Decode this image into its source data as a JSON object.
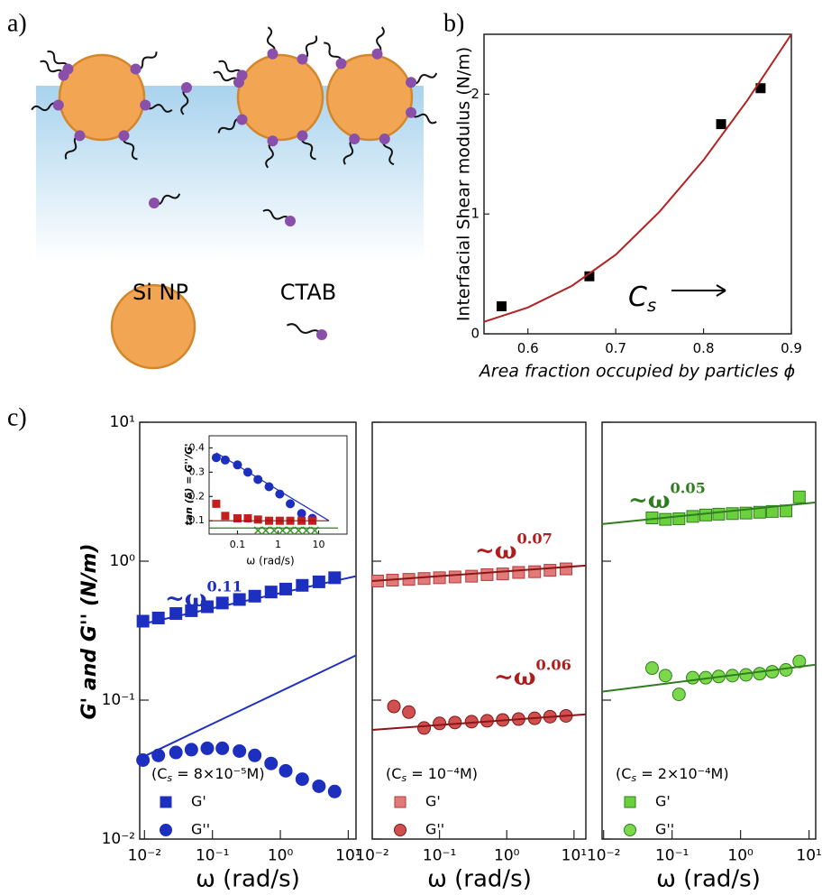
{
  "panel_labels": [
    "a)",
    "b)",
    "c)"
  ],
  "diagram": {
    "labels": [
      "Si NP",
      "CTAB"
    ]
  },
  "chart_data": [
    {
      "type": "scatter",
      "ylabel": "Interfacial Shear modulus (N/m)",
      "xlabel": "Area fraction occupied by particles ϕ",
      "xlim": [
        0.55,
        0.9
      ],
      "xticks": [
        0.6,
        0.7,
        0.8,
        0.9
      ],
      "xlog": false,
      "ylim": [
        0,
        2.5
      ],
      "yticks": [
        0,
        1,
        2
      ],
      "ylog": false,
      "series": [
        {
          "marker": "square",
          "color": "#000000",
          "x": [
            0.57,
            0.67,
            0.82,
            0.865
          ],
          "values": [
            0.23,
            0.48,
            1.75,
            2.05
          ]
        },
        {
          "marker": "line",
          "color": "#b22222",
          "x": [
            0.55,
            0.6,
            0.65,
            0.7,
            0.75,
            0.8,
            0.85,
            0.9
          ],
          "values": [
            0.1,
            0.22,
            0.4,
            0.66,
            1.02,
            1.45,
            1.95,
            2.5
          ]
        }
      ],
      "annotations": [
        {
          "text": "C",
          "subscript": "s"
        }
      ]
    },
    {
      "type": "scatter",
      "ylabel": "G' and G'' (N/m)",
      "xlabel": "ω (rad/s)",
      "xlim": [
        0.0085,
        13
      ],
      "xlog": true,
      "xticks": [
        {
          "value": 0.01,
          "label": "10⁻²"
        },
        {
          "value": 0.1,
          "label": "10⁻¹"
        },
        {
          "value": 1,
          "label": "10⁰"
        },
        {
          "value": 10,
          "label": "10¹"
        }
      ],
      "ylim": [
        0.01,
        10
      ],
      "ylog": true,
      "yticks": [
        {
          "value": 0.01,
          "label": "10⁻²"
        },
        {
          "value": 0.1,
          "label": "10⁻¹"
        },
        {
          "value": 1,
          "label": "10⁰"
        },
        {
          "value": 10,
          "label": "10¹"
        }
      ],
      "condition": {
        "prefix": "(C",
        "subscript": "s",
        "suffix": " = 8×10⁻⁵M)"
      },
      "series": [
        {
          "name": "G'",
          "marker": "square",
          "color": "#1c2fbf",
          "edge": "#1c2fbf",
          "x": [
            0.0095,
            0.016,
            0.029,
            0.049,
            0.084,
            0.14,
            0.25,
            0.42,
            0.73,
            1.2,
            2.1,
            3.7,
            6.3
          ],
          "values": [
            0.37,
            0.39,
            0.42,
            0.44,
            0.47,
            0.5,
            0.53,
            0.56,
            0.6,
            0.63,
            0.67,
            0.71,
            0.76
          ]
        },
        {
          "name": "G''",
          "marker": "circle",
          "color": "#1c2fbf",
          "edge": "#1c2fbf",
          "x": [
            0.0095,
            0.016,
            0.029,
            0.049,
            0.084,
            0.14,
            0.25,
            0.42,
            0.73,
            1.2,
            2.1,
            3.7,
            6.3
          ],
          "values": [
            0.037,
            0.04,
            0.042,
            0.044,
            0.045,
            0.045,
            0.043,
            0.04,
            0.035,
            0.031,
            0.027,
            0.024,
            0.022
          ]
        },
        {
          "marker": "line",
          "color": "#1c2fbf",
          "x": [
            0.0085,
            13
          ],
          "values": [
            0.35,
            0.78
          ]
        },
        {
          "marker": "line",
          "color": "#1c2fbf",
          "x": [
            0.0085,
            13
          ],
          "values": [
            0.038,
            0.21
          ]
        }
      ],
      "annotations": [
        {
          "text": "~ω",
          "exponent": "0.11",
          "color": "#1c2fbf"
        }
      ]
    },
    {
      "type": "scatter",
      "xlabel": "ω (rad/s)",
      "xlim": [
        0.01,
        15
      ],
      "xlog": true,
      "xticks": [
        {
          "value": 0.01,
          "label": "10⁻²"
        },
        {
          "value": 0.1,
          "label": "10⁻¹"
        },
        {
          "value": 1,
          "label": "10⁰"
        },
        {
          "value": 10,
          "label": "10¹"
        }
      ],
      "ylim": [
        0.01,
        10
      ],
      "ylog": true,
      "yticks": [
        0.01,
        0.1,
        1,
        10
      ],
      "condition": {
        "prefix": "(C",
        "subscript": "s",
        "suffix": " = 10⁻⁴M)"
      },
      "series": [
        {
          "name": "G'",
          "marker": "square",
          "color": "#e27a7a",
          "edge": "#b23a3a",
          "x": [
            0.012,
            0.02,
            0.035,
            0.059,
            0.1,
            0.17,
            0.3,
            0.51,
            0.87,
            1.5,
            2.6,
            4.4,
            7.6
          ],
          "values": [
            0.72,
            0.73,
            0.74,
            0.75,
            0.76,
            0.77,
            0.78,
            0.8,
            0.81,
            0.83,
            0.84,
            0.86,
            0.88
          ]
        },
        {
          "name": "G''",
          "marker": "circle",
          "color": "#d24f4f",
          "edge": "#7a1c1c",
          "x": [
            0.021,
            0.035,
            0.059,
            0.1,
            0.17,
            0.3,
            0.51,
            0.87,
            1.5,
            2.6,
            4.4,
            7.6
          ],
          "values": [
            0.09,
            0.082,
            0.063,
            0.068,
            0.069,
            0.07,
            0.071,
            0.072,
            0.073,
            0.074,
            0.076,
            0.077
          ]
        },
        {
          "marker": "line",
          "color": "#8b1616",
          "x": [
            0.01,
            15
          ],
          "values": [
            0.72,
            0.93
          ]
        },
        {
          "marker": "line",
          "color": "#8b1616",
          "x": [
            0.01,
            15
          ],
          "values": [
            0.061,
            0.079
          ]
        }
      ],
      "annotations": [
        {
          "text": "~ω",
          "exponent": "0.07",
          "color": "#b01c1c"
        },
        {
          "text": "~ω",
          "exponent": "0.06",
          "color": "#b01c1c"
        }
      ]
    },
    {
      "type": "scatter",
      "xlabel": "ω (rad/s)",
      "xlim": [
        0.0095,
        12.5
      ],
      "xlog": true,
      "xticks": [
        {
          "value": 0.01,
          "label": "10⁻²"
        },
        {
          "value": 0.1,
          "label": "10⁻¹"
        },
        {
          "value": 1,
          "label": "10⁰"
        },
        {
          "value": 10,
          "label": "10¹"
        }
      ],
      "ylim": [
        0.01,
        10
      ],
      "ylog": true,
      "yticks": [
        0.01,
        0.1,
        1,
        10
      ],
      "condition": {
        "prefix": "(C",
        "subscript": "s",
        "suffix": " = 2×10⁻⁴M)"
      },
      "series": [
        {
          "name": "G'",
          "marker": "square",
          "color": "#6ad13d",
          "edge": "#2f7d1f",
          "x": [
            0.051,
            0.08,
            0.126,
            0.2,
            0.31,
            0.48,
            0.76,
            1.2,
            1.9,
            2.9,
            4.6,
            7.2
          ],
          "values": [
            2.05,
            2.0,
            2.02,
            2.1,
            2.15,
            2.18,
            2.2,
            2.22,
            2.25,
            2.28,
            2.3,
            2.9
          ]
        },
        {
          "name": "G''",
          "marker": "circle",
          "color": "#7ad84a",
          "edge": "#2f7d1f",
          "x": [
            0.051,
            0.08,
            0.126,
            0.2,
            0.31,
            0.48,
            0.76,
            1.2,
            1.9,
            2.9,
            4.6,
            7.2
          ],
          "values": [
            0.17,
            0.15,
            0.11,
            0.145,
            0.145,
            0.148,
            0.15,
            0.152,
            0.155,
            0.16,
            0.165,
            0.19
          ]
        },
        {
          "marker": "line",
          "color": "#2f7d1f",
          "x": [
            0.0095,
            12.5
          ],
          "values": [
            1.85,
            2.65
          ]
        },
        {
          "marker": "line",
          "color": "#2f7d1f",
          "x": [
            0.0095,
            12.5
          ],
          "values": [
            0.115,
            0.18
          ]
        }
      ],
      "annotations": [
        {
          "text": "~ω",
          "exponent": "0.05",
          "color": "#2f7d1f"
        }
      ]
    },
    {
      "type": "scatter",
      "ylabel": "tan (δ) = G''/G'",
      "xlabel": "ω (rad/s)",
      "xlim": [
        0.02,
        50
      ],
      "xlog": true,
      "xticks": [
        0.1,
        1,
        10
      ],
      "ylim": [
        0.045,
        0.45
      ],
      "ylog": false,
      "yticks": [
        0.1,
        0.2,
        0.3,
        0.4
      ],
      "series": [
        {
          "marker": "circle",
          "color": "#1c2fbf",
          "edge": "#1c2fbf",
          "x": [
            0.03,
            0.05,
            0.1,
            0.18,
            0.32,
            0.6,
            1.1,
            2,
            3.8,
            7
          ],
          "values": [
            0.36,
            0.35,
            0.33,
            0.3,
            0.27,
            0.24,
            0.21,
            0.17,
            0.13,
            0.11
          ]
        },
        {
          "marker": "square",
          "color": "#c41e1e",
          "edge": "#c41e1e",
          "x": [
            0.03,
            0.05,
            0.1,
            0.18,
            0.32,
            0.6,
            1.1,
            2,
            3.8,
            7
          ],
          "values": [
            0.17,
            0.12,
            0.11,
            0.11,
            0.105,
            0.1,
            0.1,
            0.1,
            0.1,
            0.1
          ]
        },
        {
          "marker": "cross",
          "color": "#3a9a2a",
          "x": [
            0.32,
            0.5,
            0.8,
            1.3,
            2,
            3.2,
            5,
            8
          ],
          "values": [
            0.06,
            0.06,
            0.06,
            0.06,
            0.06,
            0.06,
            0.06,
            0.06
          ]
        },
        {
          "marker": "line",
          "color": "#1c2fbf",
          "x": [
            0.03,
            18
          ],
          "values": [
            0.38,
            0.1
          ]
        },
        {
          "marker": "line",
          "color": "#8b1616",
          "x": [
            0.02,
            18
          ],
          "values": [
            0.1,
            0.1
          ]
        },
        {
          "marker": "line",
          "color": "#2f7d1f",
          "x": [
            0.02,
            30
          ],
          "values": [
            0.07,
            0.07
          ]
        }
      ]
    }
  ]
}
